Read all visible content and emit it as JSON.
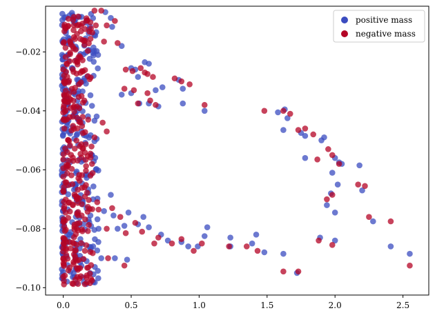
{
  "chart_data": {
    "type": "scatter",
    "title": "",
    "xlabel": "",
    "ylabel": "",
    "xlim": [
      -0.13,
      2.69
    ],
    "ylim": [
      -0.1025,
      -0.0045
    ],
    "x_ticks": [
      0.0,
      0.5,
      1.0,
      1.5,
      2.0,
      2.5
    ],
    "x_tick_labels": [
      "0.0",
      "0.5",
      "1.0",
      "1.5",
      "2.0",
      "2.5"
    ],
    "y_ticks": [
      -0.02,
      -0.04,
      -0.06,
      -0.08,
      -0.1
    ],
    "y_tick_labels": [
      "−0.02",
      "−0.04",
      "−0.06",
      "−0.08",
      "−0.10"
    ],
    "grid": false,
    "legend_position": "upper right",
    "series": [
      {
        "name": "positive mass",
        "color": "#3B4CC0",
        "alpha": 0.75,
        "points": [
          [
            0.31,
            -0.0065
          ],
          [
            0.35,
            -0.0085
          ],
          [
            0.36,
            -0.0115
          ],
          [
            0.43,
            -0.018
          ],
          [
            0.5,
            -0.0255
          ],
          [
            0.53,
            -0.026
          ],
          [
            0.55,
            -0.0285
          ],
          [
            0.6,
            -0.0235
          ],
          [
            0.63,
            -0.024
          ],
          [
            0.68,
            -0.033
          ],
          [
            0.73,
            -0.032
          ],
          [
            0.85,
            -0.0295
          ],
          [
            0.88,
            -0.0325
          ],
          [
            0.43,
            -0.0345
          ],
          [
            0.5,
            -0.034
          ],
          [
            0.56,
            -0.0375
          ],
          [
            0.63,
            -0.0375
          ],
          [
            0.7,
            -0.0385
          ],
          [
            0.88,
            -0.0375
          ],
          [
            1.04,
            -0.04
          ],
          [
            1.58,
            -0.0405
          ],
          [
            1.63,
            -0.0395
          ],
          [
            1.65,
            -0.0425
          ],
          [
            1.62,
            -0.0465
          ],
          [
            1.75,
            -0.0475
          ],
          [
            1.78,
            -0.0485
          ],
          [
            1.9,
            -0.05
          ],
          [
            1.92,
            -0.049
          ],
          [
            2.0,
            -0.056
          ],
          [
            2.03,
            -0.0575
          ],
          [
            2.05,
            -0.058
          ],
          [
            2.18,
            -0.0585
          ],
          [
            1.78,
            -0.056
          ],
          [
            1.98,
            -0.061
          ],
          [
            2.02,
            -0.065
          ],
          [
            1.97,
            -0.068
          ],
          [
            1.94,
            -0.072
          ],
          [
            2.0,
            -0.0745
          ],
          [
            2.2,
            -0.067
          ],
          [
            2.28,
            -0.0775
          ],
          [
            2.41,
            -0.086
          ],
          [
            2.55,
            -0.0885
          ],
          [
            1.62,
            -0.0885
          ],
          [
            1.89,
            -0.083
          ],
          [
            2.0,
            -0.084
          ],
          [
            1.72,
            -0.095
          ],
          [
            1.42,
            -0.082
          ],
          [
            1.39,
            -0.085
          ],
          [
            1.48,
            -0.088
          ],
          [
            1.23,
            -0.083
          ],
          [
            1.23,
            -0.086
          ],
          [
            1.06,
            -0.0795
          ],
          [
            1.04,
            -0.0825
          ],
          [
            0.99,
            -0.086
          ],
          [
            0.92,
            -0.086
          ],
          [
            0.87,
            -0.0845
          ],
          [
            0.77,
            -0.084
          ],
          [
            0.72,
            -0.082
          ],
          [
            0.63,
            -0.0795
          ],
          [
            0.59,
            -0.076
          ],
          [
            0.55,
            -0.0785
          ],
          [
            0.48,
            -0.0745
          ],
          [
            0.45,
            -0.079
          ],
          [
            0.37,
            -0.0755
          ],
          [
            0.4,
            -0.08
          ],
          [
            0.35,
            -0.0685
          ],
          [
            0.3,
            -0.074
          ],
          [
            0.2,
            -0.0755
          ],
          [
            0.38,
            -0.09
          ],
          [
            0.47,
            -0.0905
          ],
          [
            0.28,
            -0.09
          ],
          [
            0.22,
            -0.07
          ],
          [
            0.26,
            -0.08
          ],
          [
            0.22,
            -0.086
          ]
        ],
        "dense_column": {
          "x_range": [
            -0.01,
            0.26
          ],
          "y_range": [
            -0.0995,
            -0.0065
          ],
          "count": 300
        }
      },
      {
        "name": "negative mass",
        "color": "#B40426",
        "alpha": 0.75,
        "points": [
          [
            0.23,
            -0.006
          ],
          [
            0.28,
            -0.006
          ],
          [
            0.11,
            -0.008
          ],
          [
            0.17,
            -0.0095
          ],
          [
            0.2,
            -0.01
          ],
          [
            0.24,
            -0.011
          ],
          [
            0.32,
            -0.011
          ],
          [
            0.13,
            -0.013
          ],
          [
            0.38,
            -0.0095
          ],
          [
            0.3,
            -0.0165
          ],
          [
            0.4,
            -0.017
          ],
          [
            0.46,
            -0.026
          ],
          [
            0.51,
            -0.0265
          ],
          [
            0.57,
            -0.0255
          ],
          [
            0.6,
            -0.027
          ],
          [
            0.62,
            -0.0275
          ],
          [
            0.66,
            -0.0285
          ],
          [
            0.82,
            -0.029
          ],
          [
            0.87,
            -0.03
          ],
          [
            0.93,
            -0.031
          ],
          [
            0.45,
            -0.0325
          ],
          [
            0.52,
            -0.033
          ],
          [
            0.62,
            -0.034
          ],
          [
            0.64,
            -0.0365
          ],
          [
            0.68,
            -0.038
          ],
          [
            0.55,
            -0.0375
          ],
          [
            1.04,
            -0.038
          ],
          [
            1.48,
            -0.04
          ],
          [
            1.62,
            -0.04
          ],
          [
            1.67,
            -0.041
          ],
          [
            1.73,
            -0.0465
          ],
          [
            1.78,
            -0.046
          ],
          [
            1.84,
            -0.048
          ],
          [
            1.95,
            -0.053
          ],
          [
            1.98,
            -0.055
          ],
          [
            1.87,
            -0.0565
          ],
          [
            2.03,
            -0.058
          ],
          [
            1.98,
            -0.0685
          ],
          [
            1.94,
            -0.07
          ],
          [
            2.17,
            -0.065
          ],
          [
            2.22,
            -0.0655
          ],
          [
            2.25,
            -0.076
          ],
          [
            2.41,
            -0.0775
          ],
          [
            2.55,
            -0.0925
          ],
          [
            1.98,
            -0.0855
          ],
          [
            1.88,
            -0.084
          ],
          [
            1.73,
            -0.0945
          ],
          [
            1.62,
            -0.0945
          ],
          [
            1.43,
            -0.0875
          ],
          [
            1.35,
            -0.086
          ],
          [
            1.22,
            -0.086
          ],
          [
            1.02,
            -0.085
          ],
          [
            0.96,
            -0.0875
          ],
          [
            0.87,
            -0.0835
          ],
          [
            0.8,
            -0.085
          ],
          [
            0.7,
            -0.083
          ],
          [
            0.67,
            -0.085
          ],
          [
            0.58,
            -0.081
          ],
          [
            0.53,
            -0.078
          ],
          [
            0.46,
            -0.0815
          ],
          [
            0.42,
            -0.076
          ],
          [
            0.36,
            -0.073
          ],
          [
            0.32,
            -0.08
          ],
          [
            0.25,
            -0.071
          ],
          [
            0.26,
            -0.0735
          ],
          [
            0.33,
            -0.09
          ],
          [
            0.45,
            -0.0925
          ],
          [
            0.2,
            -0.062
          ],
          [
            0.2,
            -0.0545
          ],
          [
            0.23,
            -0.049
          ],
          [
            0.29,
            -0.044
          ],
          [
            0.32,
            -0.047
          ]
        ],
        "dense_column": {
          "x_range": [
            0.0,
            0.22
          ],
          "y_range": [
            -0.099,
            -0.008
          ],
          "count": 300
        }
      }
    ]
  }
}
